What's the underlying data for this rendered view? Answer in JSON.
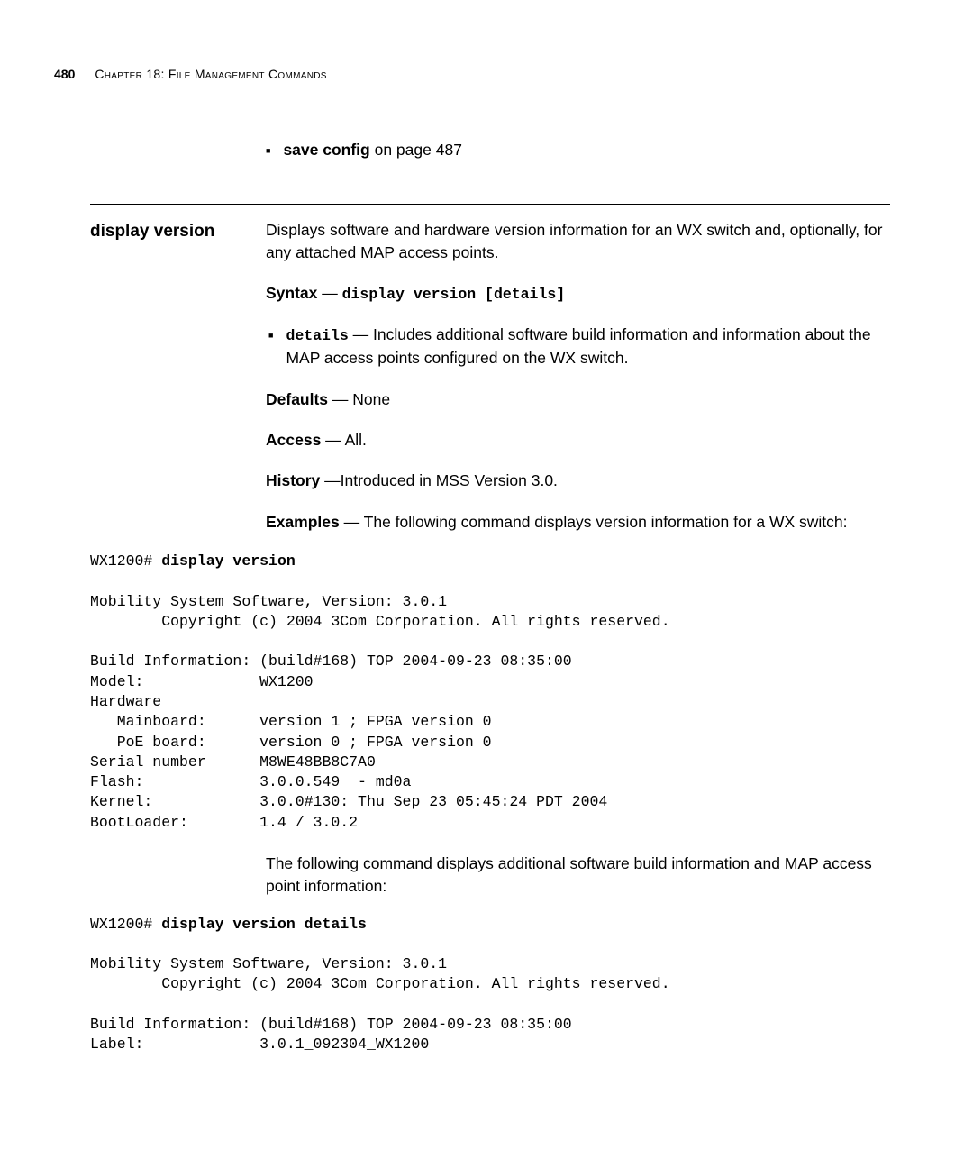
{
  "header": {
    "page_number": "480",
    "chapter_label": "Chapter 18: File Management Commands"
  },
  "see_also": {
    "link_label": "save config",
    "link_suffix": "on page 487"
  },
  "command": {
    "title": "display version",
    "description": "Displays software and hardware version information for an WX switch and, optionally, for any attached MAP access points.",
    "syntax": {
      "label": "Syntax",
      "sep": " — ",
      "code": "display version [details]"
    },
    "params": {
      "details": {
        "code": "details",
        "sep": " — ",
        "text": "Includes additional software build information and information about the MAP access points configured on the WX switch."
      }
    },
    "defaults": {
      "label": "Defaults",
      "sep": " — ",
      "value": "None"
    },
    "access": {
      "label": "Access",
      "sep": " — ",
      "value": "All."
    },
    "history": {
      "label": "History",
      "sep": " —",
      "value": "Introduced in MSS Version 3.0."
    },
    "examples": {
      "label": "Examples",
      "sep": " — ",
      "text": "The following command displays version information for a WX switch:"
    }
  },
  "example1": {
    "prompt": "WX1200# ",
    "cmd": "display version",
    "output": "Mobility System Software, Version: 3.0.1\n        Copyright (c) 2004 3Com Corporation. All rights reserved.\n\nBuild Information: (build#168) TOP 2004-09-23 08:35:00\nModel:             WX1200\nHardware\n   Mainboard:      version 1 ; FPGA version 0\n   PoE board:      version 0 ; FPGA version 0\nSerial number      M8WE48BB8C7A0\nFlash:             3.0.0.549  - md0a\nKernel:            3.0.0#130: Thu Sep 23 05:45:24 PDT 2004\nBootLoader:        1.4 / 3.0.2"
  },
  "mid_paragraph": "The following command displays additional software build information and MAP access point information:",
  "example2": {
    "prompt": "WX1200# ",
    "cmd": "display version details",
    "output": "Mobility System Software, Version: 3.0.1\n        Copyright (c) 2004 3Com Corporation. All rights reserved.\n\nBuild Information: (build#168) TOP 2004-09-23 08:35:00\nLabel:             3.0.1_092304_WX1200"
  }
}
